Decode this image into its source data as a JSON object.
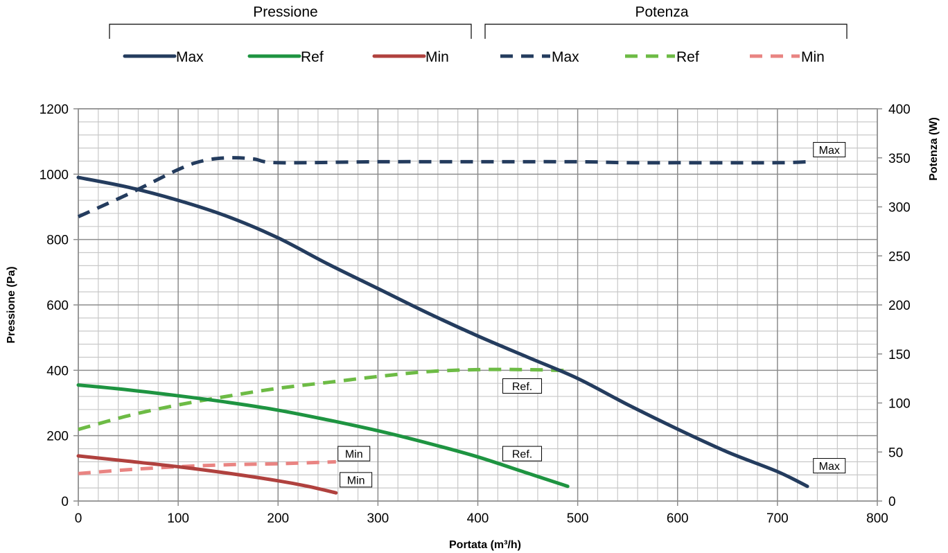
{
  "chart_data": {
    "type": "line",
    "xlabel": "Portata (m³/h)",
    "ylabel": "Pressione (Pa)",
    "y2label": "Potenza (W)",
    "xlim": [
      0,
      800
    ],
    "ylim": [
      0,
      1200
    ],
    "y2lim": [
      0,
      400
    ],
    "xticks": [
      0,
      100,
      200,
      300,
      400,
      500,
      600,
      700,
      800
    ],
    "yticks": [
      0,
      200,
      400,
      600,
      800,
      1000,
      1200
    ],
    "y2ticks": [
      0,
      50,
      100,
      150,
      200,
      250,
      300,
      350,
      400
    ],
    "grid": true,
    "legend_placement": "top",
    "legend_groups": [
      {
        "title": "Pressione",
        "entries": [
          "Max",
          "Ref",
          "Min"
        ]
      },
      {
        "title": "Potenza",
        "entries": [
          "Max",
          "Ref",
          "Min"
        ]
      }
    ],
    "series": [
      {
        "name": "Max",
        "group": "Pressione",
        "axis": "left",
        "color": "#243c5e",
        "dashed": false,
        "x": [
          0,
          50,
          100,
          150,
          200,
          250,
          300,
          350,
          400,
          450,
          500,
          550,
          600,
          650,
          700,
          730
        ],
        "y": [
          990,
          960,
          920,
          870,
          805,
          725,
          650,
          575,
          505,
          440,
          375,
          295,
          220,
          150,
          90,
          45
        ]
      },
      {
        "name": "Ref",
        "group": "Pressione",
        "axis": "left",
        "color": "#1e9441",
        "dashed": false,
        "x": [
          0,
          50,
          100,
          150,
          200,
          250,
          300,
          350,
          400,
          450,
          490
        ],
        "y": [
          355,
          340,
          322,
          302,
          278,
          248,
          215,
          177,
          135,
          85,
          45
        ]
      },
      {
        "name": "Min",
        "group": "Pressione",
        "axis": "left",
        "color": "#b0413e",
        "dashed": false,
        "x": [
          0,
          50,
          100,
          150,
          200,
          230,
          258
        ],
        "y": [
          138,
          122,
          105,
          85,
          62,
          45,
          25
        ]
      },
      {
        "name": "Max",
        "group": "Potenza",
        "axis": "right",
        "color": "#243c5e",
        "dashed": true,
        "x": [
          0,
          50,
          100,
          125,
          150,
          175,
          200,
          300,
          400,
          500,
          550,
          600,
          700,
          730
        ],
        "y": [
          290,
          313,
          338,
          347,
          350,
          349,
          345,
          346,
          346,
          346,
          345,
          345,
          345,
          346
        ]
      },
      {
        "name": "Ref",
        "group": "Potenza",
        "axis": "right",
        "color": "#6dbb45",
        "dashed": true,
        "x": [
          0,
          50,
          100,
          150,
          200,
          250,
          300,
          350,
          400,
          450,
          490
        ],
        "y": [
          73,
          87,
          98,
          107,
          115,
          121,
          127,
          132,
          134,
          134,
          133
        ]
      },
      {
        "name": "Min",
        "group": "Potenza",
        "axis": "right",
        "color": "#e98482",
        "dashed": true,
        "x": [
          0,
          50,
          100,
          150,
          200,
          258
        ],
        "y": [
          28,
          32,
          35,
          37,
          38,
          40
        ]
      }
    ],
    "annotations": [
      {
        "text": "Max",
        "x": 736,
        "y": 1075,
        "axis": "left"
      },
      {
        "text": "Max",
        "x": 736,
        "y": 108,
        "axis": "left"
      },
      {
        "text": "Ref.",
        "x": 425,
        "y": 352,
        "axis": "left"
      },
      {
        "text": "Ref.",
        "x": 425,
        "y": 145,
        "axis": "left"
      },
      {
        "text": "Min",
        "x": 260,
        "y": 145,
        "axis": "left"
      },
      {
        "text": "Min",
        "x": 262,
        "y": 65,
        "axis": "left"
      }
    ]
  }
}
